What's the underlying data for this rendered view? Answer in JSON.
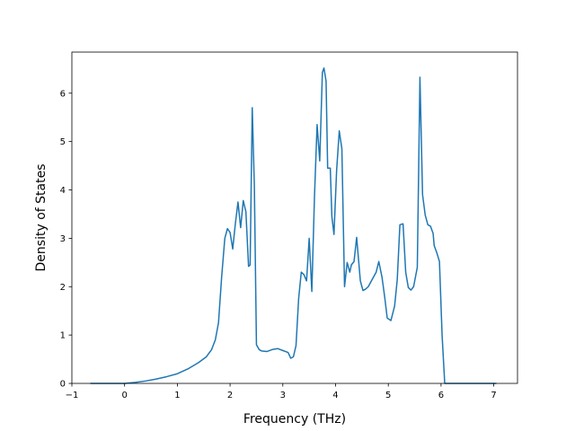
{
  "chart_data": {
    "type": "line",
    "title": "",
    "xlabel": "Frequency (THz)",
    "ylabel": "Density of States",
    "xlim": [
      -1.0,
      7.45
    ],
    "ylim": [
      0,
      6.85
    ],
    "xticks": [
      -1,
      0,
      1,
      2,
      3,
      4,
      5,
      6,
      7
    ],
    "yticks": [
      0,
      1,
      2,
      3,
      4,
      5,
      6
    ],
    "grid": false,
    "legend": "none",
    "series": [
      {
        "name": "",
        "color": "#1f77b4",
        "x": [
          -0.65,
          -0.3,
          0.0,
          0.2,
          0.4,
          0.6,
          0.8,
          1.0,
          1.2,
          1.4,
          1.55,
          1.65,
          1.72,
          1.78,
          1.84,
          1.9,
          1.95,
          2.0,
          2.05,
          2.1,
          2.15,
          2.2,
          2.25,
          2.3,
          2.35,
          2.38,
          2.42,
          2.46,
          2.5,
          2.55,
          2.6,
          2.7,
          2.8,
          2.9,
          3.0,
          3.1,
          3.15,
          3.2,
          3.25,
          3.3,
          3.35,
          3.4,
          3.45,
          3.5,
          3.55,
          3.6,
          3.65,
          3.7,
          3.75,
          3.78,
          3.82,
          3.85,
          3.9,
          3.93,
          3.97,
          4.02,
          4.07,
          4.12,
          4.17,
          4.22,
          4.27,
          4.3,
          4.35,
          4.4,
          4.47,
          4.52,
          4.57,
          4.62,
          4.67,
          4.72,
          4.77,
          4.82,
          4.88,
          4.93,
          4.98,
          5.05,
          5.12,
          5.17,
          5.22,
          5.28,
          5.33,
          5.38,
          5.43,
          5.48,
          5.55,
          5.6,
          5.65,
          5.7,
          5.75,
          5.8,
          5.85,
          5.87,
          5.92,
          5.97,
          6.02,
          6.07,
          6.12,
          6.17,
          6.25,
          6.33,
          6.4,
          6.43,
          6.46,
          7.05
        ],
        "y": [
          0,
          0,
          0,
          0.02,
          0.05,
          0.09,
          0.14,
          0.2,
          0.3,
          0.43,
          0.55,
          0.7,
          0.9,
          1.25,
          2.2,
          3.0,
          3.2,
          3.12,
          2.78,
          3.3,
          3.75,
          3.22,
          3.78,
          3.55,
          2.42,
          2.45,
          5.7,
          4.1,
          0.8,
          0.7,
          0.67,
          0.66,
          0.7,
          0.72,
          0.68,
          0.64,
          0.52,
          0.55,
          0.78,
          1.75,
          2.3,
          2.25,
          2.12,
          3.0,
          1.9,
          3.85,
          5.35,
          4.6,
          6.43,
          6.52,
          6.25,
          4.45,
          4.45,
          3.45,
          3.08,
          4.4,
          5.22,
          4.85,
          2.0,
          2.5,
          2.3,
          2.45,
          2.52,
          3.02,
          2.12,
          1.92,
          1.95,
          2.0,
          2.1,
          2.2,
          2.3,
          2.52,
          2.2,
          1.8,
          1.35,
          1.3,
          1.6,
          2.15,
          3.28,
          3.3,
          2.3,
          1.98,
          1.93,
          2.0,
          2.4,
          6.33,
          3.9,
          3.48,
          3.28,
          3.25,
          3.1,
          2.85,
          2.7,
          2.52,
          1.0,
          0,
          0,
          0,
          0,
          0,
          0,
          0,
          0,
          0
        ]
      }
    ]
  }
}
